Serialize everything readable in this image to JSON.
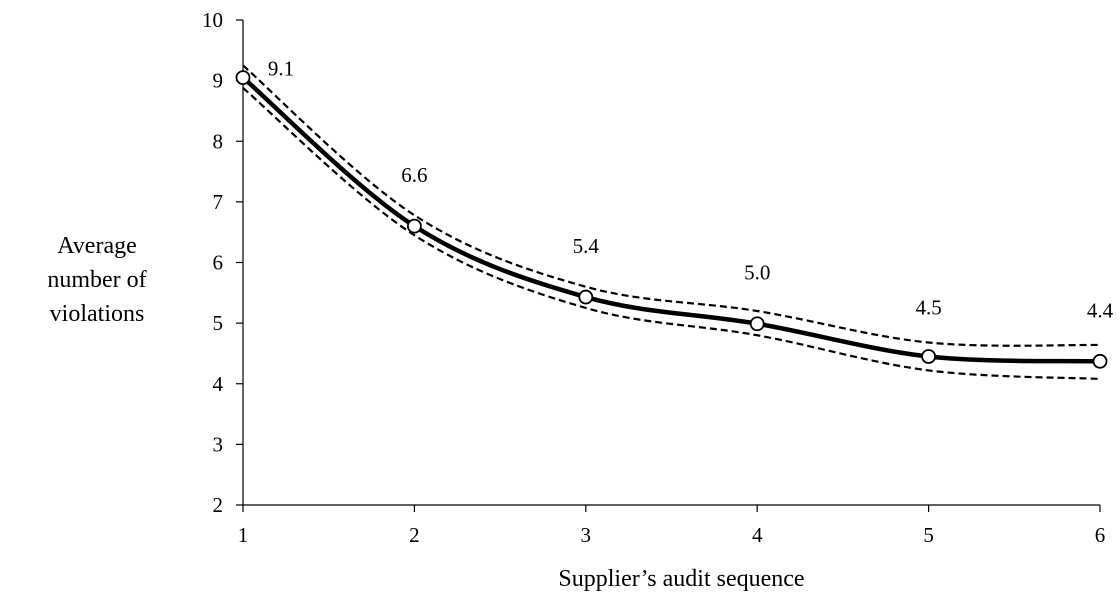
{
  "chart_data": {
    "type": "line",
    "xlabel": "Supplier’s audit sequence",
    "ylabel_lines": [
      "Average",
      "number of",
      "violations"
    ],
    "x_ticks": [
      1,
      2,
      3,
      4,
      5,
      6
    ],
    "y_ticks": [
      2,
      3,
      4,
      5,
      6,
      7,
      8,
      9,
      10
    ],
    "xlim": [
      1,
      6
    ],
    "ylim": [
      2,
      10
    ],
    "grid": false,
    "legend": "none",
    "series": [
      {
        "role": "mean",
        "style": "solid",
        "x": [
          1,
          2,
          3,
          4,
          5,
          6
        ],
        "y": [
          9.05,
          6.6,
          5.43,
          4.99,
          4.45,
          4.37
        ],
        "labels": [
          "9.1",
          "6.6",
          "5.4",
          "5.0",
          "4.5",
          "4.4"
        ]
      },
      {
        "role": "upper-bound",
        "style": "dashed",
        "x": [
          1,
          2,
          3,
          4,
          5,
          6
        ],
        "y": [
          9.25,
          6.78,
          5.6,
          5.2,
          4.68,
          4.64
        ]
      },
      {
        "role": "lower-bound",
        "style": "dashed",
        "x": [
          1,
          2,
          3,
          4,
          5,
          6
        ],
        "y": [
          8.88,
          6.45,
          5.25,
          4.8,
          4.22,
          4.08
        ]
      }
    ]
  }
}
